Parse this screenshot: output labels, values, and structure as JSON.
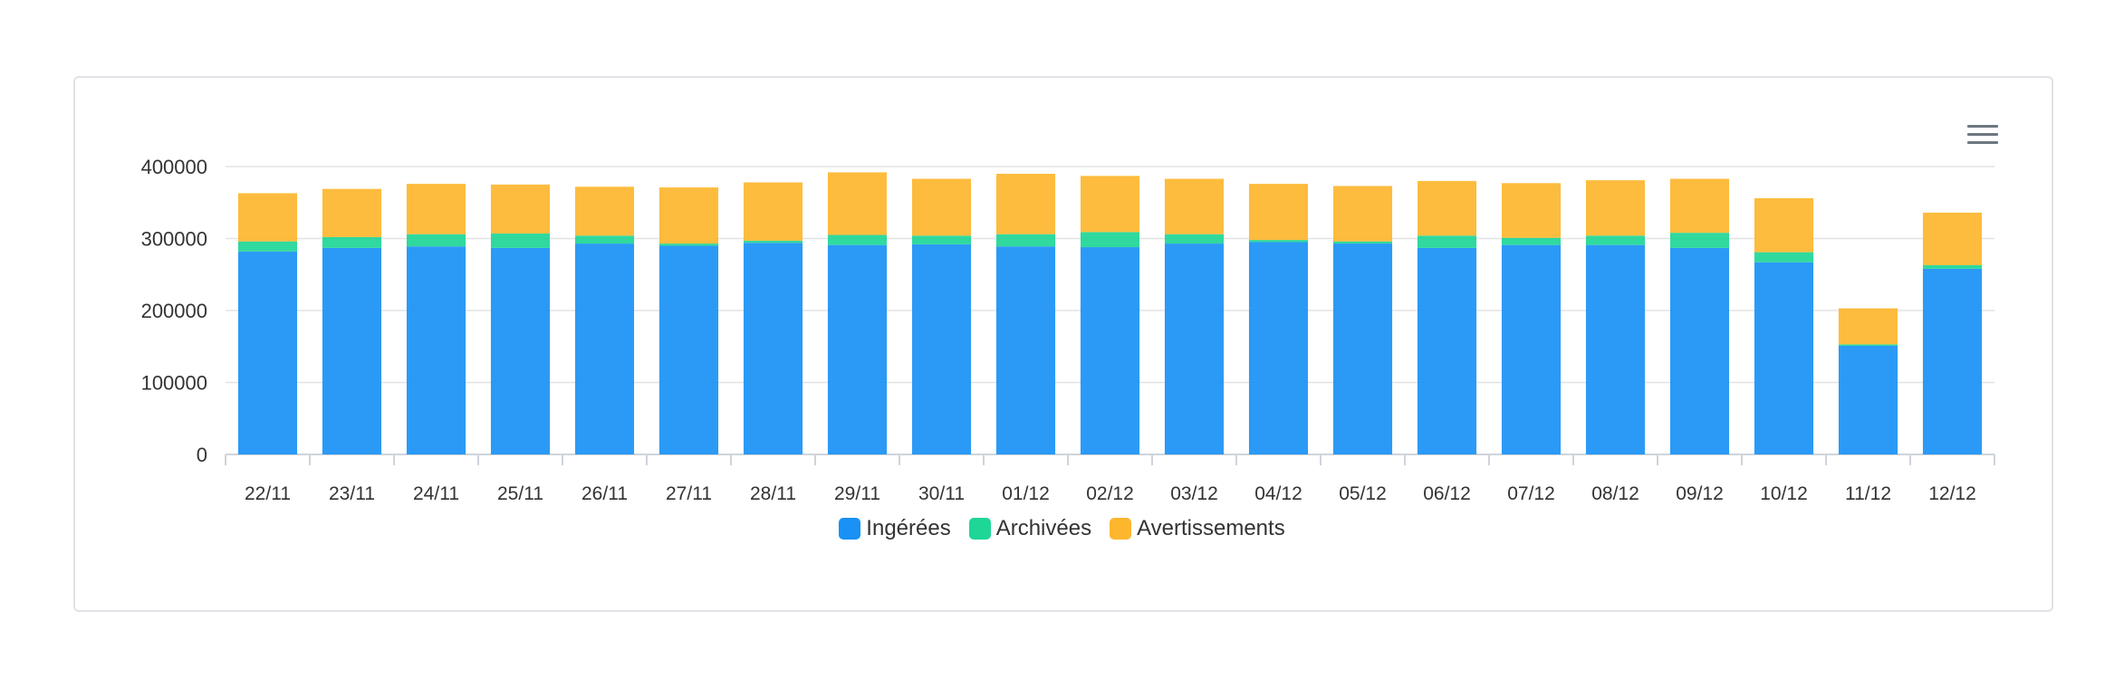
{
  "chart_data": {
    "type": "bar",
    "stacked": true,
    "categories": [
      "22/11",
      "23/11",
      "24/11",
      "25/11",
      "26/11",
      "27/11",
      "28/11",
      "29/11",
      "30/11",
      "01/12",
      "02/12",
      "03/12",
      "04/12",
      "05/12",
      "06/12",
      "07/12",
      "08/12",
      "09/12",
      "10/12",
      "11/12",
      "12/12"
    ],
    "series": [
      {
        "name": "Ingérées",
        "color": "#1991f5",
        "values": [
          282000,
          287000,
          289000,
          287000,
          293000,
          290000,
          294000,
          291000,
          292000,
          289000,
          288000,
          293000,
          295000,
          293000,
          287000,
          291000,
          291000,
          287000,
          267000,
          151000,
          258000
        ]
      },
      {
        "name": "Archivées",
        "color": "#1ed696",
        "values": [
          14000,
          15000,
          17000,
          20000,
          11000,
          3000,
          3000,
          14000,
          12000,
          17000,
          21000,
          13000,
          3000,
          3000,
          17000,
          10000,
          13000,
          21000,
          14000,
          2000,
          5000
        ]
      },
      {
        "name": "Avertissements",
        "color": "#fdb62e",
        "values": [
          67000,
          67000,
          70000,
          68000,
          68000,
          78000,
          81000,
          87000,
          79000,
          84000,
          78000,
          77000,
          78000,
          77000,
          76000,
          76000,
          77000,
          75000,
          75000,
          50000,
          73000
        ]
      }
    ],
    "ylim": [
      0,
      400000
    ],
    "yticks": [
      "0",
      "100000",
      "200000",
      "300000",
      "400000"
    ],
    "grid": true,
    "legend_position": "bottom-center"
  },
  "menu": {
    "icon": "hamburger-menu-icon"
  }
}
